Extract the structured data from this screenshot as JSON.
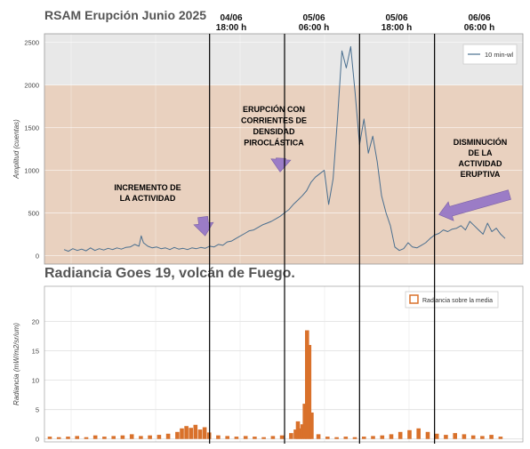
{
  "chart_data": [
    {
      "type": "line",
      "title": "RSAM Erupción Junio 2025",
      "ylabel": "Amplitud (cuentas)",
      "ylim": [
        -100,
        2600
      ],
      "yticks": [
        0,
        500,
        1000,
        1500,
        2000,
        2500
      ],
      "grid": true,
      "legend_position": "top-right",
      "background_bands": [
        {
          "from": -100,
          "to": 2000,
          "color": "#e9d1bf"
        },
        {
          "from": 2000,
          "to": 2600,
          "color": "#e8e8e8"
        }
      ],
      "line_color": "#4a6f8f",
      "series": [
        {
          "name": "10 min-wl",
          "x": [
            0,
            2,
            4,
            6,
            8,
            10,
            12,
            14,
            16,
            18,
            20,
            22,
            24,
            26,
            28,
            30,
            32,
            34,
            35,
            36,
            38,
            40,
            42,
            44,
            46,
            48,
            50,
            52,
            54,
            56,
            58,
            60,
            62,
            64,
            66,
            68,
            70,
            72,
            74,
            76,
            78,
            80,
            82,
            84,
            86,
            88,
            90,
            92,
            94,
            96,
            98,
            100,
            102,
            104,
            106,
            108,
            110,
            112,
            114,
            116,
            118,
            120,
            122,
            124,
            126,
            128,
            130,
            132,
            134,
            136,
            138,
            140,
            142,
            144,
            146,
            148,
            150,
            152,
            154,
            156,
            158,
            160,
            162,
            164,
            166,
            168,
            170,
            172,
            174,
            176,
            178,
            180,
            182,
            184,
            186,
            188,
            190,
            192,
            194,
            196,
            198,
            200
          ],
          "y": [
            70,
            50,
            80,
            60,
            75,
            55,
            90,
            60,
            80,
            65,
            85,
            70,
            90,
            75,
            95,
            100,
            130,
            110,
            230,
            150,
            110,
            90,
            100,
            80,
            90,
            70,
            95,
            75,
            85,
            70,
            90,
            80,
            95,
            85,
            110,
            100,
            130,
            120,
            160,
            170,
            200,
            230,
            260,
            290,
            300,
            330,
            360,
            380,
            400,
            430,
            460,
            500,
            540,
            600,
            650,
            700,
            760,
            860,
            920,
            960,
            1000,
            600,
            900,
            1600,
            2400,
            2200,
            2450,
            1900,
            1300,
            1600,
            1200,
            1400,
            1100,
            700,
            500,
            350,
            100,
            60,
            80,
            150,
            100,
            90,
            120,
            150,
            200,
            240,
            260,
            300,
            280,
            310,
            320,
            350,
            300,
            400,
            350,
            300,
            250,
            380,
            280,
            320,
            250,
            200
          ]
        }
      ],
      "x_markers": [
        {
          "x": 66,
          "label_line1": "04/06",
          "label_line2": "18:00 h"
        },
        {
          "x": 100,
          "label_line1": "05/06",
          "label_line2": "06:00 h"
        },
        {
          "x": 134,
          "label_line1": "05/06",
          "label_line2": "18:00 h"
        },
        {
          "x": 168,
          "label_line1": "06/06",
          "label_line2": "06:00 h"
        }
      ],
      "annotations": [
        {
          "id": "increase",
          "lines": [
            "INCREMENTO DE",
            "LA ACTIVIDAD"
          ],
          "arrow_to": [
            64,
            230
          ]
        },
        {
          "id": "eruption",
          "lines": [
            "ERUPCIÓN CON",
            "CORRIENTES DE",
            "DENSIDAD",
            "PIROCLÁSTICA"
          ],
          "arrow_to": [
            98,
            980
          ]
        },
        {
          "id": "decrease",
          "lines": [
            "DISMINUCIÓN",
            "DE LA",
            "ACTIVIDAD",
            "ERUPTIVA"
          ],
          "arrow_to": [
            170,
            480
          ]
        }
      ],
      "arrow_color": "#9b7cc6"
    },
    {
      "type": "bar",
      "title": "Radiancia Goes 19, volcán de Fuego.",
      "ylabel": "Radiancia (mW/m2/sr/um)",
      "ylim": [
        -0.5,
        26
      ],
      "yticks": [
        0,
        5,
        10,
        15,
        20
      ],
      "grid": true,
      "legend_position": "top-right",
      "bar_color": "#d9712b",
      "series": [
        {
          "name": "Radiancia sobre la media",
          "x": [
            0,
            4,
            8,
            12,
            16,
            20,
            24,
            28,
            32,
            36,
            40,
            44,
            48,
            52,
            56,
            58,
            60,
            62,
            64,
            66,
            68,
            70,
            74,
            78,
            82,
            86,
            90,
            94,
            98,
            102,
            106,
            108,
            109,
            110,
            111,
            112,
            113,
            114,
            115,
            118,
            122,
            126,
            130,
            134,
            138,
            142,
            146,
            150,
            154,
            158,
            162,
            166,
            170,
            174,
            178,
            182,
            186,
            190,
            194,
            198
          ],
          "y": [
            0.4,
            0.3,
            0.4,
            0.5,
            0.3,
            0.6,
            0.4,
            0.5,
            0.6,
            0.8,
            0.5,
            0.6,
            0.7,
            0.9,
            1.2,
            1.8,
            2.2,
            1.9,
            2.4,
            1.6,
            2.0,
            1.1,
            0.6,
            0.5,
            0.4,
            0.5,
            0.4,
            0.3,
            0.5,
            0.6,
            1.0,
            1.6,
            3.0,
            1.8,
            2.5,
            6.0,
            18.5,
            16.0,
            4.5,
            0.8,
            0.4,
            0.3,
            0.4,
            0.3,
            0.4,
            0.5,
            0.6,
            0.8,
            1.2,
            1.5,
            1.8,
            1.2,
            0.9,
            0.7,
            1.0,
            0.8,
            0.6,
            0.5,
            0.7,
            0.4
          ]
        }
      ]
    }
  ]
}
